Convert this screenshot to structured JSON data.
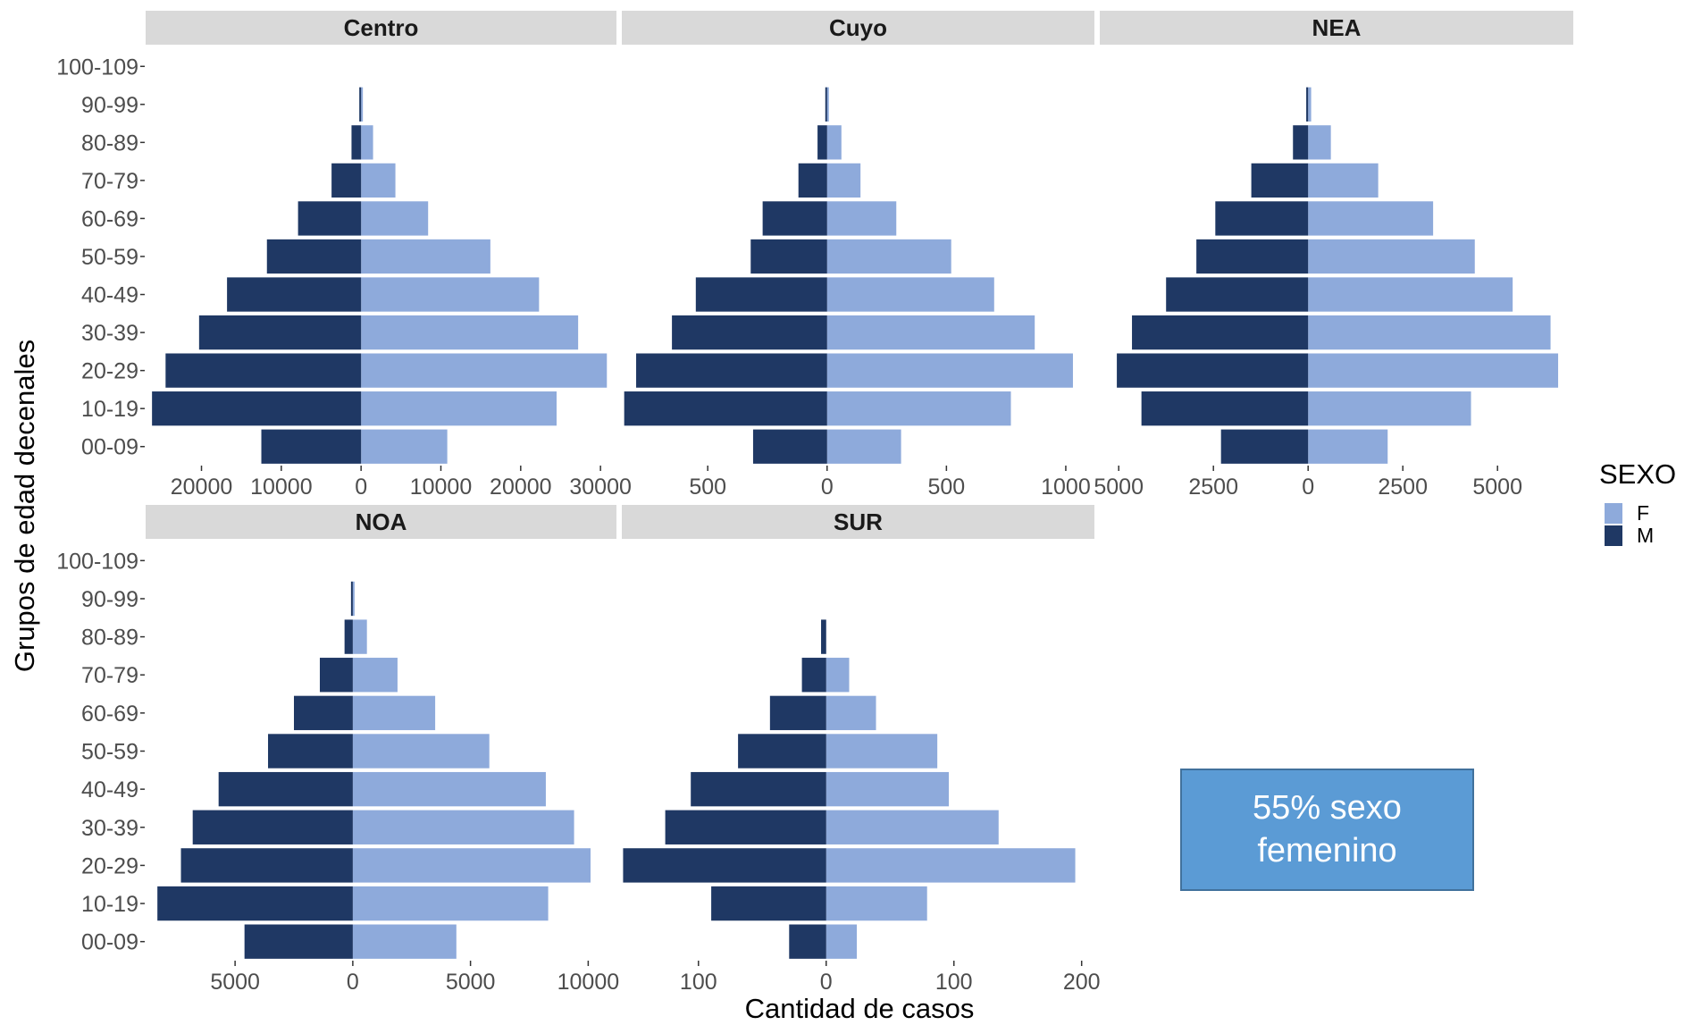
{
  "chart_data": {
    "type": "bar",
    "orientation": "horizontal",
    "layout": "population-pyramid-facets",
    "xlabel": "Cantidad de casos",
    "ylabel": "Grupos de edad decenales",
    "categories": [
      "00-09",
      "10-19",
      "20-29",
      "30-39",
      "40-49",
      "50-59",
      "60-69",
      "70-79",
      "80-89",
      "90-99",
      "100-109"
    ],
    "legend": {
      "title": "SEXO",
      "placement": "right",
      "entries": [
        {
          "label": "F",
          "color": "#8eaadb"
        },
        {
          "label": "M",
          "color": "#1f3864"
        }
      ]
    },
    "colors": {
      "F": "#8eaadb",
      "M": "#1f3864",
      "strip": "#d9d9d9"
    },
    "panels": [
      {
        "name": "Centro",
        "xlim": [
          -27000,
          32000
        ],
        "ticks": [
          -20000,
          -10000,
          0,
          10000,
          20000,
          30000
        ],
        "tick_labels": [
          "20000",
          "10000",
          "0",
          "10000",
          "20000",
          "30000"
        ],
        "F": [
          10800,
          24500,
          30800,
          27200,
          22300,
          16200,
          8400,
          4300,
          1500,
          200,
          0
        ],
        "M": [
          12500,
          26200,
          24500,
          20300,
          16800,
          11800,
          7900,
          3700,
          1200,
          200,
          0
        ]
      },
      {
        "name": "Cuyo",
        "xlim": [
          -860,
          1120
        ],
        "ticks": [
          -500,
          0,
          500,
          1000
        ],
        "tick_labels": [
          "500",
          "0",
          "500",
          "1000"
        ],
        "F": [
          310,
          770,
          1030,
          870,
          700,
          520,
          290,
          140,
          60,
          5,
          0
        ],
        "M": [
          310,
          850,
          800,
          650,
          550,
          320,
          270,
          120,
          40,
          5,
          0
        ]
      },
      {
        "name": "NEA",
        "xlim": [
          -5500,
          7000
        ],
        "ticks": [
          -5000,
          -2500,
          0,
          2500,
          5000
        ],
        "tick_labels": [
          "5000",
          "2500",
          "0",
          "2500",
          "5000"
        ],
        "F": [
          2100,
          4300,
          6600,
          6400,
          5400,
          4400,
          3300,
          1850,
          600,
          80,
          0
        ],
        "M": [
          2300,
          4400,
          5050,
          4650,
          3750,
          2950,
          2450,
          1500,
          400,
          50,
          0
        ]
      },
      {
        "name": "NOA",
        "xlim": [
          -8800,
          11200
        ],
        "ticks": [
          -5000,
          0,
          5000,
          10000
        ],
        "tick_labels": [
          "5000",
          "0",
          "5000",
          "10000"
        ],
        "F": [
          4400,
          8300,
          10100,
          9400,
          8200,
          5800,
          3500,
          1900,
          600,
          50,
          0
        ],
        "M": [
          4600,
          8300,
          7300,
          6800,
          5700,
          3600,
          2500,
          1400,
          350,
          50,
          0
        ]
      },
      {
        "name": "SUR",
        "xlim": [
          -160,
          210
        ],
        "ticks": [
          -100,
          0,
          100,
          200
        ],
        "tick_labels": [
          "100",
          "0",
          "100",
          "200"
        ],
        "F": [
          24,
          79,
          195,
          135,
          96,
          87,
          39,
          18,
          0,
          0,
          0
        ],
        "M": [
          29,
          90,
          159,
          126,
          106,
          69,
          44,
          19,
          4,
          0,
          0
        ]
      }
    ]
  },
  "annotation": {
    "text": "55% sexo femenino"
  }
}
